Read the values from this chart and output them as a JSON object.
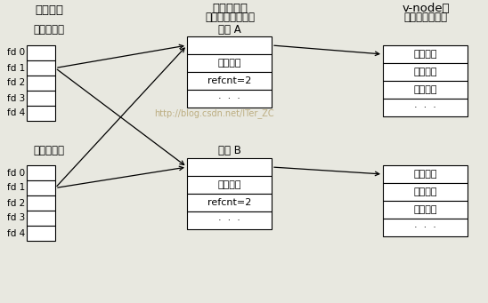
{
  "bg_color": "#e8e8e0",
  "title_col1": "描述符表",
  "title_col2_line1": "打开文件表",
  "title_col2_line2": "（所有进程共享）",
  "title_col3_line1": "v-node表",
  "title_col3_line2": "（所有进程共享",
  "parent_label": "父进程的表",
  "child_label": "子进程的表",
  "fd_labels": [
    "fd 0",
    "fd 1",
    "fd 2",
    "fd 3",
    "fd 4"
  ],
  "file_a_label": "文件 A",
  "file_b_label": "文件 B",
  "file_a_rows": [
    "",
    "文件位置",
    "refcnt=2",
    "·  ·  ·"
  ],
  "file_b_rows": [
    "",
    "文件位置",
    "refcnt=2",
    "·  ·  ·"
  ],
  "vnode_a_rows": [
    "文件访问",
    "文件大小",
    "文件类型",
    "·  ·  ·"
  ],
  "vnode_b_rows": [
    "文件访问",
    "文件大小",
    "文件类型",
    "·  ·  ·"
  ],
  "watermark": "http://blog.csdn.net/ITer_ZC",
  "box_color": "#ffffff",
  "border_color": "#000000",
  "text_color": "#000000",
  "watermark_color": "#b8a878"
}
